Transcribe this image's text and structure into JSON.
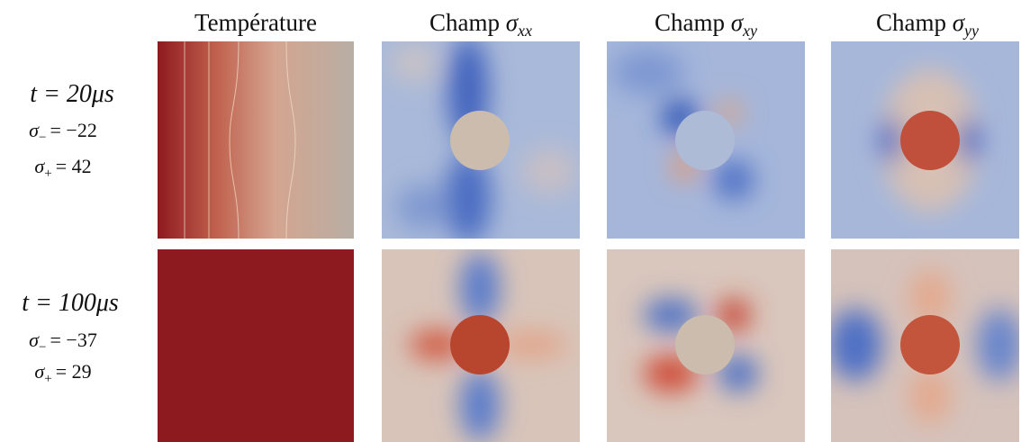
{
  "columns": [
    {
      "label": "Température"
    },
    {
      "label": "Champ",
      "symbol": "σ",
      "subscript": "xx"
    },
    {
      "label": "Champ",
      "symbol": "σ",
      "subscript": "xy"
    },
    {
      "label": "Champ",
      "symbol": "σ",
      "subscript": "yy"
    }
  ],
  "rows": [
    {
      "time": "t = 20μs",
      "sigma_minus": {
        "symbol": "σ",
        "subscript": "−",
        "value": "= −22"
      },
      "sigma_plus": {
        "symbol": "σ",
        "subscript": "+",
        "value": "= 42"
      }
    },
    {
      "time": "t = 100μs",
      "sigma_minus": {
        "symbol": "σ",
        "subscript": "−",
        "value": "= −37"
      },
      "sigma_plus": {
        "symbol": "σ",
        "subscript": "+",
        "value": "= 29"
      }
    }
  ]
}
